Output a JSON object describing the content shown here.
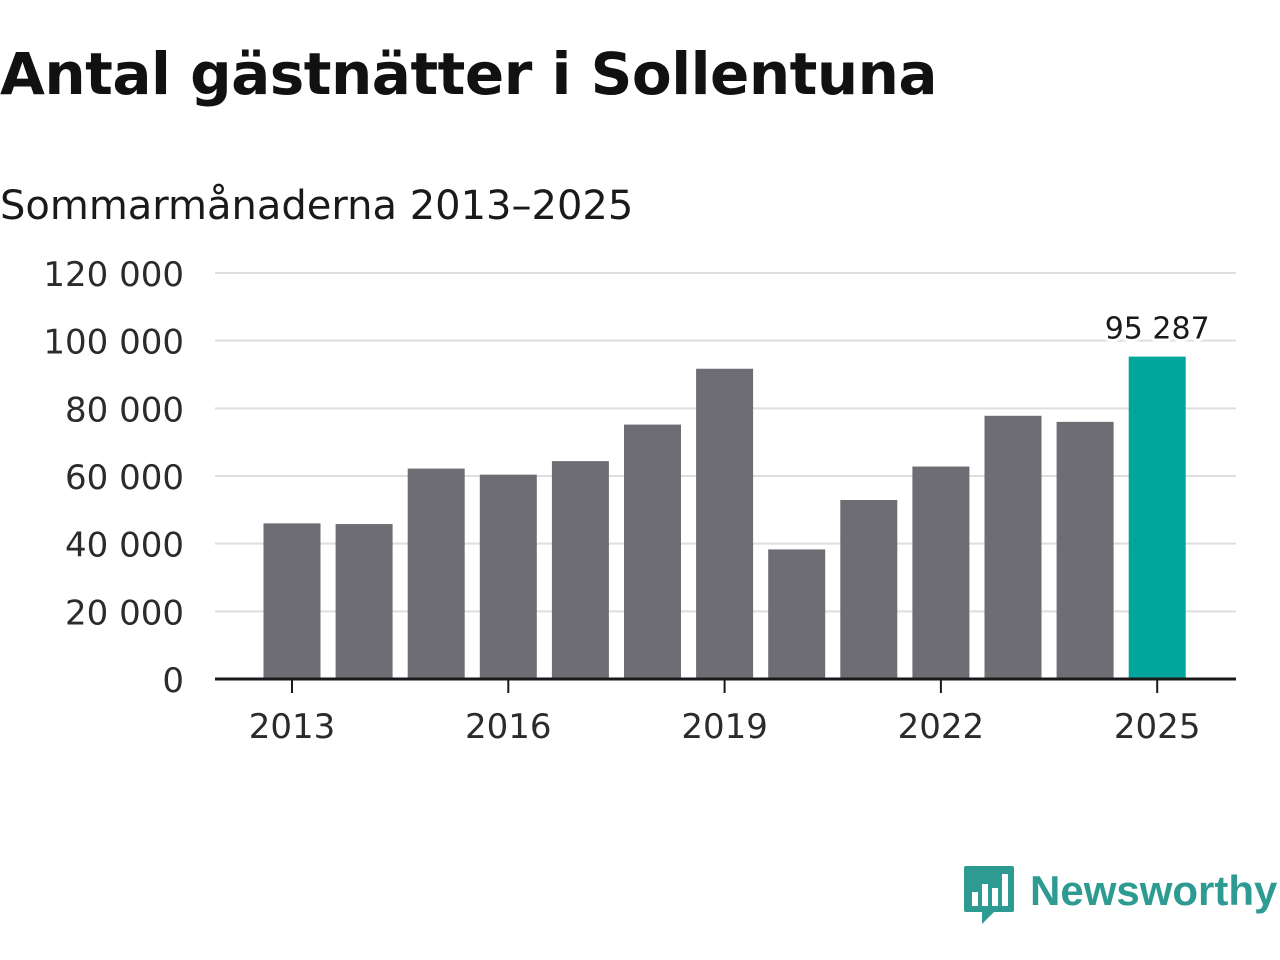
{
  "header": {
    "title": "Antal gästnätter i Sollentuna",
    "subtitle": "Sommarmånaderna 2013–2025"
  },
  "chart_data": {
    "type": "bar",
    "categories": [
      "2013",
      "2014",
      "2015",
      "2016",
      "2017",
      "2018",
      "2019",
      "2020",
      "2021",
      "2022",
      "2023",
      "2024",
      "2025"
    ],
    "x_tick_labels": [
      "2013",
      "2016",
      "2019",
      "2022",
      "2025"
    ],
    "values": [
      46000,
      45800,
      62200,
      60400,
      64400,
      75200,
      91700,
      38300,
      52900,
      62800,
      77800,
      76000,
      95287
    ],
    "highlight_index": 12,
    "annotations": [
      {
        "category": "2025",
        "text": "95 287"
      }
    ],
    "ylim": [
      0,
      120000
    ],
    "y_ticks": [
      0,
      20000,
      40000,
      60000,
      80000,
      100000,
      120000
    ],
    "y_tick_labels": [
      "0",
      "20 000",
      "40 000",
      "60 000",
      "80 000",
      "100 000",
      "120 000"
    ],
    "xlabel": "",
    "ylabel": "",
    "grid": true,
    "legend": "none",
    "colors": {
      "bar": "#6e6d73",
      "highlight": "#00a69c",
      "grid": "#dedede",
      "axis": "#1a1a1a",
      "tick_text": "#2b2b2b"
    }
  },
  "brand": {
    "name": "Newsworthy",
    "icon": "newsworthy-logo-icon",
    "color": "#2e9b93"
  }
}
